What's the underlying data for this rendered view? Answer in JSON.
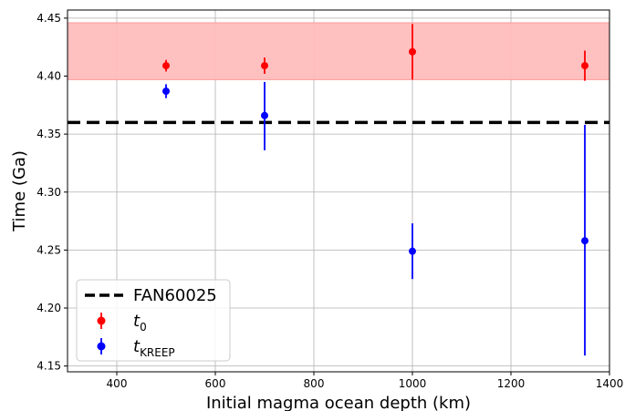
{
  "chart_data": {
    "type": "scatter",
    "xlabel": "Initial magma ocean depth (km)",
    "ylabel": "Time (Ga)",
    "xlim": [
      300,
      1400
    ],
    "ylim": [
      4.145,
      4.457
    ],
    "xticks": [
      "400",
      "600",
      "800",
      "1000",
      "1200",
      "1400"
    ],
    "yticks": [
      "4.15",
      "4.20",
      "4.25",
      "4.30",
      "4.35",
      "4.40",
      "4.45"
    ],
    "grid": true,
    "legend_position": "lower-left",
    "band": {
      "y0": 4.397,
      "y1": 4.446,
      "color": "#ffbdbd"
    },
    "hline": {
      "name": "FAN60025",
      "y": 4.36,
      "color": "#000000",
      "style": "dashed"
    },
    "series": [
      {
        "name": "t",
        "subscript": "0",
        "color": "#ff0000",
        "points": [
          {
            "x": 500,
            "y": 4.409,
            "err_low": 0.005,
            "err_high": 0.005
          },
          {
            "x": 700,
            "y": 4.409,
            "err_low": 0.007,
            "err_high": 0.007
          },
          {
            "x": 1000,
            "y": 4.421,
            "err_low": 0.024,
            "err_high": 0.024
          },
          {
            "x": 1350,
            "y": 4.409,
            "err_low": 0.013,
            "err_high": 0.013
          }
        ]
      },
      {
        "name": "t",
        "subscript": "KREEP",
        "color": "#0000ff",
        "points": [
          {
            "x": 500,
            "y": 4.387,
            "err_low": 0.006,
            "err_high": 0.006
          },
          {
            "x": 700,
            "y": 4.366,
            "err_low": 0.03,
            "err_high": 0.029
          },
          {
            "x": 1000,
            "y": 4.249,
            "err_low": 0.024,
            "err_high": 0.024
          },
          {
            "x": 1350,
            "y": 4.258,
            "err_low": 0.099,
            "err_high": 0.1
          }
        ]
      }
    ]
  }
}
